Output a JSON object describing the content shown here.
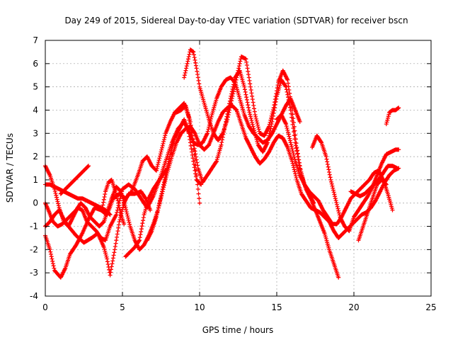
{
  "chart_data": {
    "type": "scatter",
    "title": "Day 249 of 2015, Sidereal Day-to-day VTEC variation (SDTVAR) for receiver bscn",
    "xlabel": "GPS time / hours",
    "ylabel": "SDTVAR / TECUs",
    "xlim": [
      0,
      25
    ],
    "ylim": [
      -4,
      7
    ],
    "xticks": [
      "0",
      "5",
      "10",
      "15",
      "20",
      "25"
    ],
    "yticks": [
      "-4",
      "-3",
      "-2",
      "-1",
      "0",
      "1",
      "2",
      "3",
      "4",
      "5",
      "6",
      "7"
    ],
    "grid": true,
    "marker": "plus",
    "color": "#ff0000",
    "series": [
      {
        "x": [
          0.0,
          0.3,
          0.6,
          0.9,
          1.2,
          1.5,
          2.0,
          2.5,
          3.0,
          3.4,
          3.8,
          4.0,
          4.2,
          4.5,
          4.8,
          5.1,
          5.4,
          5.8,
          6.2,
          6.5,
          6.8
        ],
        "y": [
          1.6,
          1.2,
          0.6,
          -0.2,
          -0.8,
          -1.0,
          -1.4,
          -1.7,
          -1.5,
          -1.3,
          -1.9,
          -2.4,
          -3.1,
          -2.0,
          -0.8,
          0.0,
          0.4,
          0.4,
          0.5,
          0.2,
          -0.3
        ]
      },
      {
        "x": [
          0.0,
          0.3,
          0.6,
          1.0,
          1.3,
          1.6,
          2.0,
          2.4,
          2.8,
          3.2,
          3.6,
          4.0,
          4.4,
          4.8,
          5.2,
          5.6,
          6.0,
          6.3,
          6.6,
          6.9,
          7.2,
          7.5,
          7.8,
          8.1,
          8.4,
          8.7,
          9.0,
          9.3,
          9.6,
          9.8,
          10.0
        ],
        "y": [
          -1.4,
          -2.0,
          -2.9,
          -3.2,
          -2.8,
          -2.2,
          -1.8,
          -1.3,
          -0.7,
          -0.2,
          -0.3,
          -0.5,
          0.2,
          0.4,
          0.2,
          0.5,
          1.2,
          1.8,
          2.0,
          1.6,
          1.4,
          2.2,
          3.0,
          3.5,
          3.9,
          4.1,
          4.3,
          3.7,
          2.5,
          1.2,
          0.0
        ]
      },
      {
        "x": [
          0.0,
          0.3,
          0.6,
          0.9,
          1.2,
          1.5,
          1.8,
          2.1,
          2.4,
          2.7,
          3.0,
          3.3,
          3.6,
          3.9,
          4.2,
          4.6,
          5.0,
          5.4,
          5.8,
          6.2,
          6.6,
          7.0,
          7.4,
          7.8,
          8.2,
          8.6,
          9.0,
          9.3,
          9.6,
          9.9,
          10.2,
          10.5,
          10.8,
          11.1,
          11.4,
          11.7,
          12.0,
          12.3,
          12.6,
          12.9,
          13.2,
          13.5,
          13.8,
          14.1,
          14.4,
          14.7,
          15.0,
          15.3,
          15.6,
          15.9,
          16.2,
          16.5
        ],
        "y": [
          -1.0,
          -0.8,
          -0.5,
          -0.3,
          -0.7,
          -1.0,
          -0.6,
          -0.2,
          -0.3,
          -0.8,
          -1.0,
          -1.2,
          -1.5,
          -1.6,
          -1.0,
          -0.5,
          0.6,
          0.8,
          0.6,
          0.2,
          -0.2,
          0.3,
          1.0,
          1.8,
          2.6,
          3.2,
          3.5,
          3.1,
          2.6,
          2.5,
          2.6,
          3.0,
          3.8,
          4.5,
          5.0,
          5.3,
          5.4,
          5.2,
          4.5,
          3.8,
          3.3,
          3.0,
          2.8,
          2.6,
          2.7,
          3.0,
          3.4,
          3.8,
          4.2,
          4.5,
          4.0,
          3.5
        ]
      },
      {
        "x": [
          0.0,
          0.2,
          0.5,
          0.8,
          1.1,
          1.4,
          1.7,
          2.0,
          2.3,
          2.6,
          2.9,
          3.2,
          3.5,
          3.8,
          4.0,
          4.3,
          4.6,
          4.9,
          5.2,
          5.5,
          5.8,
          6.1,
          6.4,
          6.7,
          7.0,
          7.3,
          7.6,
          7.9,
          8.2,
          8.5,
          8.8,
          9.1,
          9.4,
          9.7,
          10.0,
          10.3,
          10.6,
          10.9,
          11.2,
          11.5,
          11.8,
          12.1,
          12.4,
          12.7,
          13.0,
          13.3,
          13.6,
          13.9,
          14.2,
          14.5,
          14.8,
          15.1,
          15.4,
          15.7,
          16.0,
          16.3,
          16.6,
          16.9,
          17.2,
          17.5,
          17.8,
          18.1,
          18.4,
          18.7,
          19.0,
          19.3,
          19.6,
          19.9,
          20.2,
          20.5,
          20.8,
          21.1,
          21.4,
          21.7,
          22.0,
          22.3,
          22.6,
          22.9
        ],
        "y": [
          0.0,
          -0.3,
          -0.8,
          -1.0,
          -0.9,
          -0.7,
          -0.5,
          -0.3,
          0.0,
          -0.2,
          -0.6,
          -0.8,
          -1.0,
          -0.8,
          -0.4,
          0.2,
          0.7,
          0.5,
          -0.2,
          -1.0,
          -1.6,
          -2.0,
          -1.8,
          -1.4,
          -0.9,
          -0.3,
          0.5,
          1.3,
          2.0,
          2.6,
          3.0,
          3.2,
          3.3,
          3.0,
          2.5,
          2.3,
          2.5,
          3.0,
          3.5,
          3.9,
          4.1,
          4.2,
          4.0,
          3.4,
          2.8,
          2.4,
          2.0,
          1.7,
          1.9,
          2.2,
          2.6,
          2.9,
          2.8,
          2.4,
          1.8,
          1.0,
          0.4,
          0.1,
          -0.2,
          -0.3,
          -0.4,
          -0.6,
          -0.8,
          -1.2,
          -1.5,
          -1.3,
          -1.1,
          -0.9,
          -0.7,
          -0.5,
          -0.4,
          -0.2,
          0.1,
          0.5,
          0.9,
          1.2,
          1.4,
          1.5
        ]
      },
      {
        "x": [
          0.0,
          0.3,
          0.6,
          0.9,
          1.2,
          1.5,
          1.8,
          2.1,
          2.4,
          2.7,
          3.0,
          3.3,
          3.6,
          3.9,
          4.2
        ],
        "y": [
          0.8,
          0.8,
          0.7,
          0.6,
          0.5,
          0.4,
          0.3,
          0.2,
          0.2,
          0.1,
          0.0,
          -0.1,
          -0.2,
          -0.3,
          -0.5
        ]
      },
      {
        "x": [
          1.0,
          1.3,
          1.6,
          1.9,
          2.2,
          2.5,
          2.8
        ],
        "y": [
          0.4,
          0.6,
          0.8,
          1.0,
          1.2,
          1.4,
          1.6
        ]
      },
      {
        "x": [
          3.7,
          3.9,
          4.1,
          4.3,
          4.5,
          4.7,
          4.9,
          5.1
        ],
        "y": [
          -0.2,
          0.5,
          0.9,
          1.0,
          0.6,
          0.1,
          -0.5,
          -0.9
        ]
      },
      {
        "x": [
          5.2,
          5.5,
          5.8,
          6.1,
          6.4,
          6.7,
          7.0,
          7.3,
          7.6,
          7.9
        ],
        "y": [
          -2.3,
          -2.1,
          -1.9,
          -1.6,
          -0.5,
          0.2,
          0.6,
          0.9,
          1.2,
          1.5
        ]
      },
      {
        "x": [
          6.6,
          6.9,
          7.2,
          7.5,
          7.8,
          8.1,
          8.4,
          8.7,
          9.0,
          9.3,
          9.5,
          9.8,
          10.1
        ],
        "y": [
          -1.6,
          -1.2,
          -0.6,
          0.3,
          1.2,
          2.1,
          2.8,
          3.2,
          3.6,
          3.0,
          2.2,
          1.0,
          0.8
        ]
      },
      {
        "x": [
          8.5,
          8.8,
          9.1,
          9.4,
          9.6,
          9.9,
          10.2,
          10.5,
          10.8,
          11.1,
          11.4,
          11.7,
          12.0,
          12.3,
          12.6,
          12.9,
          13.2,
          13.5,
          13.8,
          14.1,
          14.4,
          14.7,
          15.0,
          15.3,
          15.6,
          15.9,
          16.2,
          16.5,
          16.8,
          17.1,
          17.4
        ],
        "y": [
          3.9,
          4.0,
          4.2,
          3.5,
          2.6,
          1.5,
          0.9,
          1.2,
          1.5,
          1.8,
          2.5,
          3.5,
          4.5,
          5.4,
          5.7,
          5.0,
          4.0,
          3.2,
          2.5,
          2.2,
          2.6,
          3.5,
          4.6,
          5.3,
          5.0,
          4.0,
          2.6,
          1.5,
          0.8,
          0.4,
          0.0
        ]
      },
      {
        "x": [
          9.0,
          9.2,
          9.4,
          9.6,
          9.8,
          10.0,
          10.3,
          10.6,
          10.9,
          11.2,
          11.5,
          11.8,
          12.1,
          12.4,
          12.7,
          13.0,
          13.3,
          13.6,
          13.9,
          14.2,
          14.5,
          14.8,
          15.1,
          15.4,
          15.7,
          16.0,
          16.3,
          16.6,
          16.9,
          17.2,
          17.5,
          17.8,
          18.1,
          18.4,
          18.7,
          19.0
        ],
        "y": [
          5.4,
          6.0,
          6.6,
          6.5,
          5.8,
          5.0,
          4.3,
          3.6,
          3.0,
          2.7,
          3.0,
          3.6,
          4.5,
          5.4,
          6.3,
          6.2,
          5.0,
          3.8,
          3.0,
          2.9,
          3.3,
          4.1,
          5.2,
          5.7,
          5.3,
          4.0,
          2.4,
          1.2,
          0.6,
          0.2,
          -0.3,
          -0.8,
          -1.3,
          -2.0,
          -2.6,
          -3.2
        ]
      },
      {
        "x": [
          17.3,
          17.6,
          17.9,
          18.2,
          18.5,
          18.8,
          19.1,
          19.4,
          19.7,
          20.0,
          20.3,
          20.6,
          20.9,
          21.2,
          21.5,
          21.8,
          22.1,
          22.4,
          22.7,
          22.9
        ],
        "y": [
          2.4,
          2.9,
          2.6,
          2.0,
          1.0,
          0.2,
          -0.6,
          -1.0,
          -1.2,
          -0.6,
          -0.3,
          0.0,
          0.3,
          0.7,
          1.2,
          1.7,
          2.1,
          2.2,
          2.3,
          2.3
        ]
      },
      {
        "x": [
          19.8,
          20.1,
          20.4,
          20.7,
          21.0,
          21.3,
          21.6,
          21.9,
          22.2,
          22.5,
          22.8
        ],
        "y": [
          0.5,
          0.4,
          0.3,
          0.4,
          0.6,
          0.8,
          1.0,
          1.3,
          1.6,
          1.6,
          1.5
        ]
      },
      {
        "x": [
          20.3,
          20.6,
          20.9,
          21.2,
          21.5,
          21.8,
          22.1
        ],
        "y": [
          -1.6,
          -1.0,
          -0.4,
          0.2,
          0.8,
          1.0,
          0.8
        ]
      },
      {
        "x": [
          22.1,
          22.3,
          22.5,
          22.7,
          22.9
        ],
        "y": [
          3.4,
          3.9,
          4.0,
          4.0,
          4.1
        ]
      },
      {
        "x": [
          15.0,
          15.3,
          15.6,
          15.9,
          16.2,
          16.5,
          16.8,
          17.1,
          17.4,
          17.7,
          18.0,
          18.3,
          18.6,
          18.9,
          19.2,
          19.5,
          19.8,
          20.1,
          20.4,
          20.7,
          21.0,
          21.3,
          21.6,
          21.9,
          22.2,
          22.5
        ],
        "y": [
          3.6,
          3.8,
          3.4,
          2.6,
          1.8,
          1.2,
          0.8,
          0.5,
          0.3,
          0.1,
          -0.3,
          -0.6,
          -0.9,
          -0.9,
          -0.6,
          -0.2,
          0.2,
          0.4,
          0.6,
          0.8,
          1.0,
          1.3,
          1.4,
          1.0,
          0.4,
          -0.3
        ]
      }
    ]
  }
}
